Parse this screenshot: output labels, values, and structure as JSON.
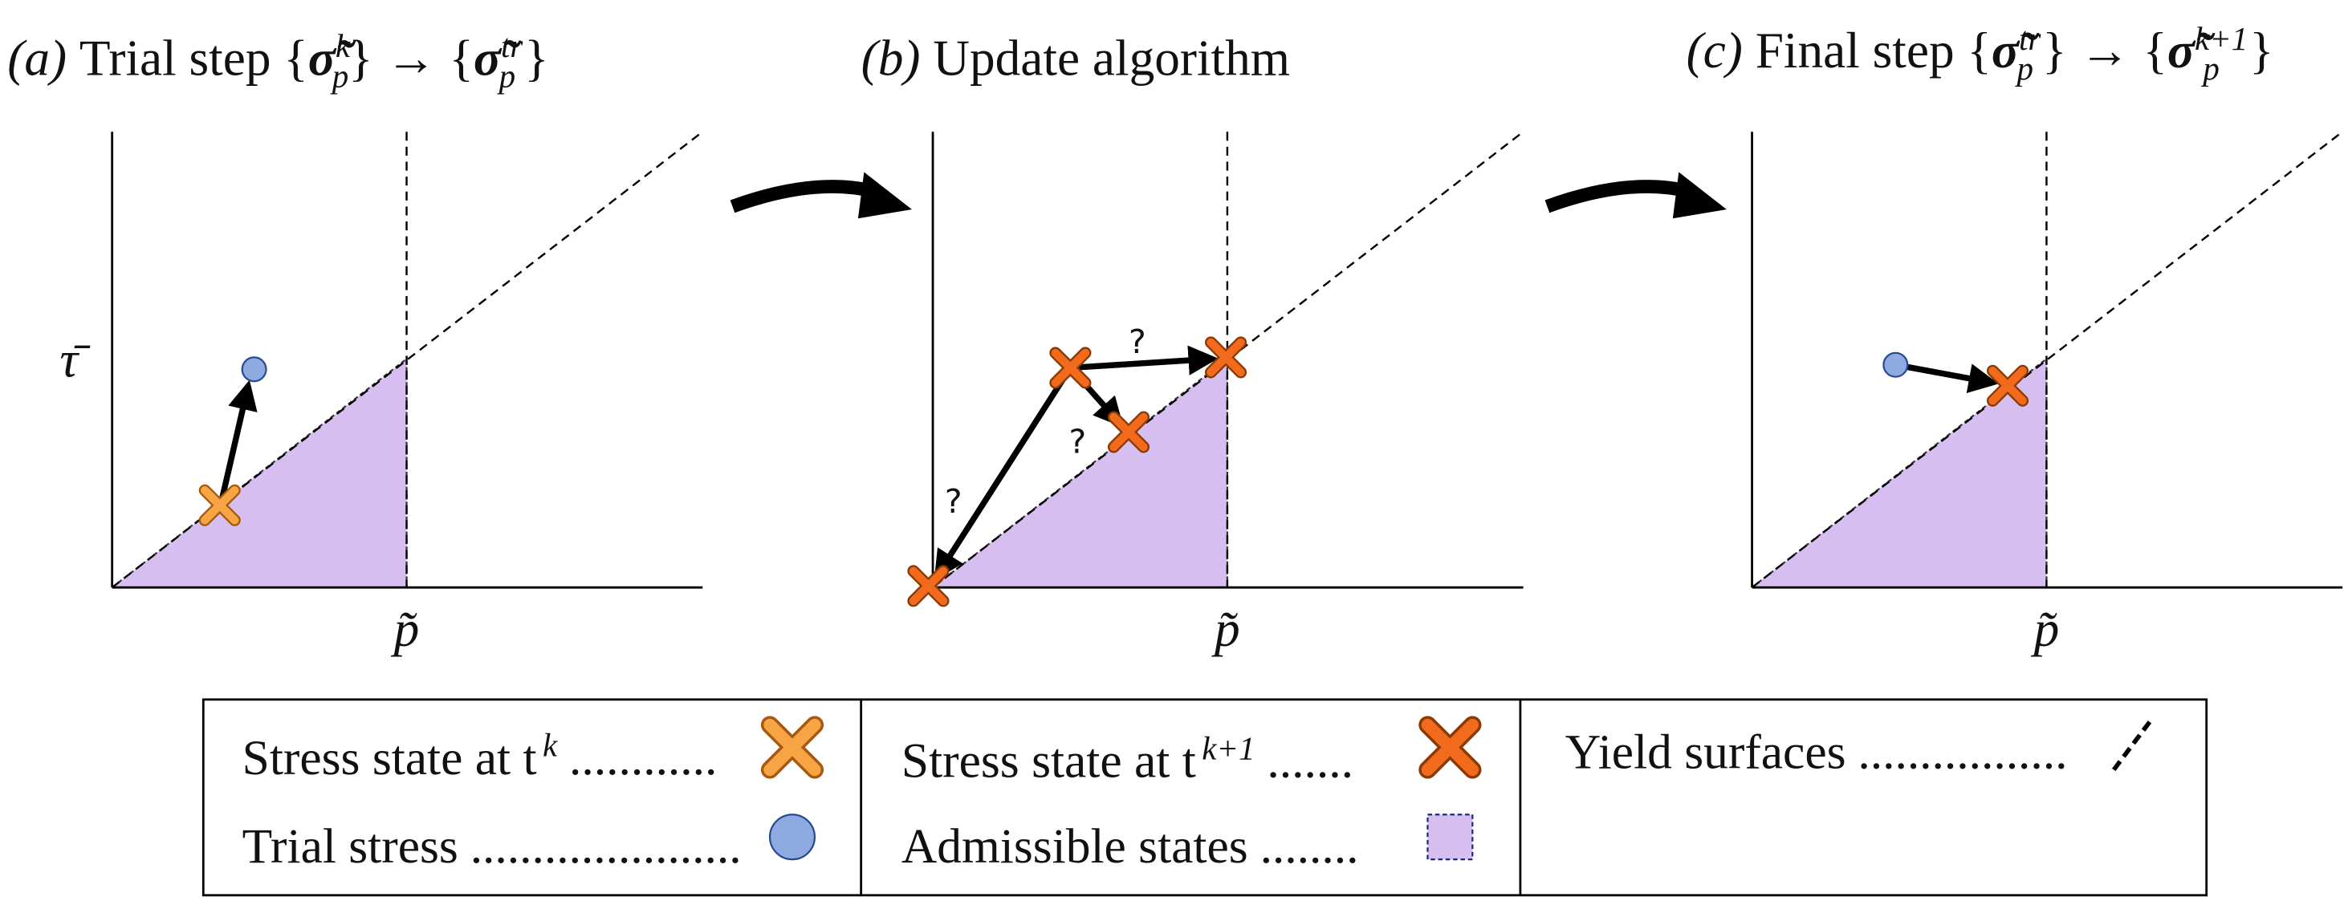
{
  "panels": [
    {
      "label": "(a)",
      "title": "Trial step",
      "formula": {
        "open1": "{",
        "from": "σ̃",
        "from_sub": "p",
        "from_sup": "k",
        "close1": "}",
        "arrow": "→",
        "open2": "{",
        "to": "σ̃",
        "to_sub": "p",
        "to_sup": "tr",
        "close2": "}"
      },
      "y_label": "τ̄",
      "x_label": "p̃"
    },
    {
      "label": "(b)",
      "title": "Update algorithm",
      "x_label": "p̃",
      "questions": [
        "?",
        "?",
        "?"
      ]
    },
    {
      "label": "(c)",
      "title": "Final step",
      "formula": {
        "open1": "{",
        "from": "σ̃",
        "from_sub": "p",
        "from_sup": "tr",
        "close1": "}",
        "arrow": "→",
        "open2": "{",
        "to": "σ̃",
        "to_sub": "p",
        "to_sup": "k+1",
        "close2": "}"
      },
      "x_label": "p̃"
    }
  ],
  "legend": [
    {
      "text": "Stress state at t",
      "sup": "k",
      "dots": "............"
    },
    {
      "text": "Trial stress",
      "dots": "......................"
    },
    {
      "text": "Stress state at t",
      "sup": "k+1",
      "dots": "......."
    },
    {
      "text": "Admissible states",
      "dots": "........"
    },
    {
      "text": "Yield surfaces",
      "dots": "................."
    }
  ]
}
